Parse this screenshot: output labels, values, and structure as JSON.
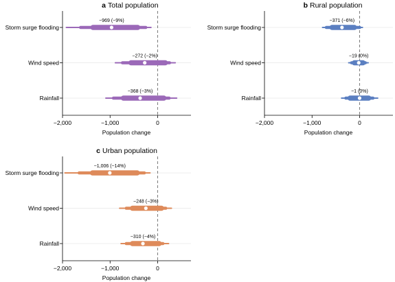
{
  "chart_data": [
    {
      "type": "interval",
      "panel_letter": "a",
      "title": "Total population",
      "xlabel": "Population change",
      "xlim": [
        -2000,
        700
      ],
      "xticks": [
        -2000,
        -1000,
        0
      ],
      "xtick_labels": [
        "−2,000",
        "−1,000",
        "0"
      ],
      "reference_line": 0,
      "color": "#9b69b8",
      "categories": [
        "Storm surge flooding",
        "Wind speed",
        "Rainfall"
      ],
      "series": [
        {
          "category": "Storm surge flooding",
          "median": -969,
          "outer": [
            -1920,
            -140
          ],
          "mid": [
            -1620,
            -250
          ],
          "inner": [
            -1360,
            -420
          ],
          "label": "−969 (−9%)"
        },
        {
          "category": "Wind speed",
          "median": -272,
          "outer": [
            -890,
            370
          ],
          "mid": [
            -740,
            250
          ],
          "inner": [
            -560,
            160
          ],
          "label": "−272 (−2%)"
        },
        {
          "category": "Rainfall",
          "median": -368,
          "outer": [
            -1090,
            400
          ],
          "mid": [
            -930,
            240
          ],
          "inner": [
            -720,
            130
          ],
          "label": "−368 (−3%)"
        }
      ]
    },
    {
      "type": "interval",
      "panel_letter": "b",
      "title": "Rural population",
      "xlabel": "Population change",
      "xlim": [
        -2000,
        700
      ],
      "xticks": [
        -2000,
        -1000,
        0
      ],
      "xtick_labels": [
        "−2,000",
        "−1,000",
        "0"
      ],
      "reference_line": 0,
      "color": "#5b7fc1",
      "categories": [
        "Storm surge flooding",
        "Wind speed",
        "Rainfall"
      ],
      "series": [
        {
          "category": "Storm surge flooding",
          "median": -371,
          "outer": [
            -780,
            60
          ],
          "mid": [
            -700,
            0
          ],
          "inner": [
            -580,
            -110
          ],
          "label": "−371 (−6%)"
        },
        {
          "category": "Wind speed",
          "median": -19,
          "outer": [
            -230,
            180
          ],
          "mid": [
            -170,
            120
          ],
          "inner": [
            -110,
            70
          ],
          "label": "−19 (0%)"
        },
        {
          "category": "Rainfall",
          "median": -1,
          "outer": [
            -380,
            380
          ],
          "mid": [
            -290,
            280
          ],
          "inner": [
            -200,
            190
          ],
          "label": "−1 (0%)"
        }
      ]
    },
    {
      "type": "interval",
      "panel_letter": "c",
      "title": "Urban population",
      "xlabel": "Population change",
      "xlim": [
        -2000,
        700
      ],
      "xticks": [
        -2000,
        -1000,
        0
      ],
      "xtick_labels": [
        "−2,000",
        "−1,000",
        "0"
      ],
      "reference_line": 0,
      "color": "#de8a5a",
      "categories": [
        "Storm surge flooding",
        "Wind speed",
        "Rainfall"
      ],
      "series": [
        {
          "category": "Storm surge flooding",
          "median": -1006,
          "outer": [
            -1950,
            -160
          ],
          "mid": [
            -1650,
            -280
          ],
          "inner": [
            -1370,
            -430
          ],
          "label": "−1,006 (−14%)"
        },
        {
          "category": "Wind speed",
          "median": -248,
          "outer": [
            -800,
            290
          ],
          "mid": [
            -660,
            170
          ],
          "inner": [
            -530,
            80
          ],
          "label": "−248 (−3%)"
        },
        {
          "category": "Rainfall",
          "median": -310,
          "outer": [
            -770,
            230
          ],
          "mid": [
            -660,
            110
          ],
          "inner": [
            -530,
            30
          ],
          "label": "−310 (−4%)"
        }
      ]
    }
  ]
}
